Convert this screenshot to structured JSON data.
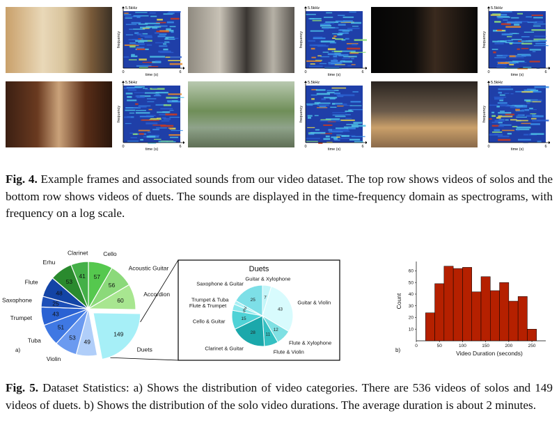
{
  "figure4": {
    "spectrogram_labels": {
      "freq_max": "5.5kHz",
      "y_axis": "frequency",
      "x_axis": "time (s)",
      "x_start": "0",
      "x_end": "6"
    },
    "frames": [
      {
        "name": "solo-guitar"
      },
      {
        "name": "solo-accordion"
      },
      {
        "name": "solo-violin"
      },
      {
        "name": "duet-guitar-violin"
      },
      {
        "name": "duet-flute-violin"
      },
      {
        "name": "solo-xylophone"
      }
    ],
    "caption_label": "Fig. 4.",
    "caption_text": "Example frames and associated sounds from our video dataset. The top row shows videos of solos and the bottom row shows videos of duets. The sounds are displayed in the time-frequency domain as spectrograms, with frequency on a log scale."
  },
  "figure5": {
    "panel_a_label": "a)",
    "panel_b_label": "b)",
    "caption_label": "Fig. 5.",
    "caption_text": "Dataset Statistics: a) Shows the distribution of video categories. There are 536 videos of solos and 149 videos of duets. b) Shows the distribution of the solo video durations. The average duration is about 2 minutes."
  },
  "chart_data": [
    {
      "type": "pie",
      "categories": [
        "Cello",
        "Acoustic Guitar",
        "Accordion",
        "Duets",
        "Xylophone",
        "Violin",
        "Tuba",
        "Trumpet",
        "Saxophone",
        "Flute",
        "Erhu",
        "Clarinet"
      ],
      "values": [
        57,
        56,
        60,
        149,
        49,
        53,
        51,
        43,
        25,
        48,
        53,
        41
      ],
      "colors": [
        "#55c84e",
        "#8bd97a",
        "#a8e690",
        "#a6eff7",
        "#b0cef9",
        "#6b9af0",
        "#3f78e3",
        "#2a62d3",
        "#1d4fb8",
        "#1344a6",
        "#2a8a2e",
        "#44b048"
      ],
      "exploded": "Duets"
    },
    {
      "type": "pie",
      "title": "Duets",
      "categories": [
        "Guitar & Xylophone",
        "Guitar & Violin",
        "Flute & Xylophone",
        "Flute & Violin",
        "Clarinet & Guitar",
        "Cello & Guitar",
        "Flute & Trumpet",
        "Trumpet & Tuba",
        "Saxophone & Guitar"
      ],
      "values": [
        7,
        43,
        12,
        11,
        28,
        15,
        5,
        3,
        25
      ],
      "value_labels": [
        "7",
        "43",
        "12",
        "11",
        "28",
        "15",
        "5",
        "3",
        "25"
      ],
      "colors": [
        "#c4f6f9",
        "#d8fbfd",
        "#7fe0e3",
        "#34c0c2",
        "#1ba8ab",
        "#4fd2d6",
        "#8de8ec",
        "#a9f0f4",
        "#7ddfe7"
      ]
    },
    {
      "type": "bar",
      "xlabel": "Video Duration (seconds)",
      "ylabel": "Count",
      "x_ticks": [
        "0",
        "50",
        "100",
        "150",
        "200",
        "250"
      ],
      "y_ticks": [
        "10",
        "20",
        "30",
        "40",
        "50",
        "60"
      ],
      "xlim": [
        0,
        280
      ],
      "ylim": [
        0,
        68
      ],
      "bin_width": 20,
      "bins_start": [
        20,
        40,
        60,
        80,
        100,
        120,
        140,
        160,
        180,
        200,
        220,
        240
      ],
      "values": [
        24,
        49,
        64,
        62,
        63,
        42,
        55,
        43,
        50,
        34,
        38,
        10
      ],
      "color": "#b52000"
    }
  ]
}
